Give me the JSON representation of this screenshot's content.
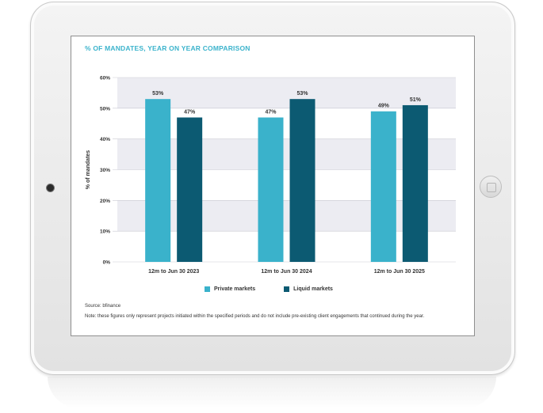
{
  "chart_data": {
    "type": "bar",
    "title": "% OF MANDATES, YEAR ON YEAR COMPARISON",
    "ylabel": "% of mandates",
    "xlabel": "",
    "ylim": [
      0,
      60
    ],
    "yticks": [
      "0%",
      "10%",
      "20%",
      "30%",
      "40%",
      "50%",
      "60%"
    ],
    "yticks_values": [
      0,
      10,
      20,
      30,
      40,
      50,
      60
    ],
    "categories": [
      "12m to Jun 30 2023",
      "12m to Jun 30 2024",
      "12m to Jun 30 2025"
    ],
    "series": [
      {
        "name": "Private markets",
        "values": [
          53,
          47,
          49
        ],
        "labels": [
          "53%",
          "47%",
          "49%"
        ],
        "color": "#3ab2cb"
      },
      {
        "name": "Liquid markets",
        "values": [
          47,
          53,
          51
        ],
        "labels": [
          "47%",
          "53%",
          "51%"
        ],
        "color": "#0c5a72"
      }
    ],
    "grid": "alternating horizontal bands",
    "band_color": "#ececf2",
    "legend_position": "bottom"
  },
  "source": "Source: bfinance",
  "note": "Note: these figures only represent projects initiated within the specified periods and do not include pre-existing client engagements that continued during the year."
}
